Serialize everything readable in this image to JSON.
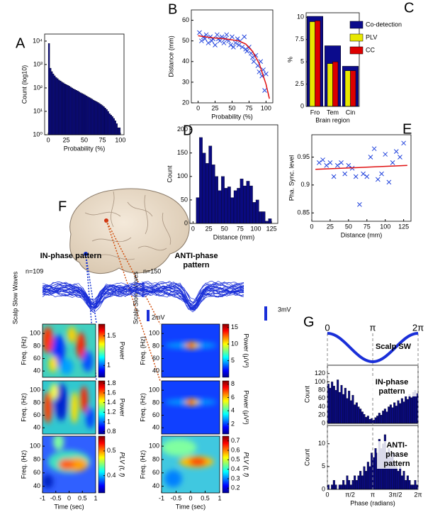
{
  "chart_data": [
    {
      "type": "histogram",
      "label": "A",
      "ylabel": "Count (log10)",
      "xlabel": "Probability (%)",
      "color": "#0a0a80",
      "log_y": true,
      "bins": [
        0,
        2,
        4,
        6,
        8,
        10,
        12,
        14,
        16,
        18,
        20,
        22,
        24,
        26,
        28,
        30,
        32,
        34,
        36,
        38,
        40,
        42,
        44,
        46,
        48,
        50,
        52,
        54,
        56,
        58,
        60,
        62,
        64,
        66,
        68,
        70,
        72,
        74,
        76,
        78,
        80,
        82,
        84,
        86,
        88,
        90,
        92,
        94,
        96,
        98,
        100
      ],
      "values": [
        8000,
        700,
        500,
        400,
        330,
        280,
        250,
        220,
        200,
        180,
        165,
        150,
        140,
        130,
        120,
        110,
        100,
        92,
        85,
        80,
        74,
        68,
        62,
        58,
        54,
        50,
        46,
        42,
        39,
        36,
        33,
        30,
        28,
        26,
        24,
        22,
        20,
        18,
        16,
        14,
        12,
        10,
        8,
        7,
        6,
        5,
        4,
        3,
        2,
        2
      ],
      "xlim": [
        -5,
        105
      ],
      "xticks": [
        0,
        25,
        50,
        75,
        100
      ],
      "ylim": [
        1,
        20000
      ],
      "yticks": [
        {
          "value": 1,
          "label": "10⁰"
        },
        {
          "value": 10,
          "label": "10¹"
        },
        {
          "value": 100,
          "label": "10²"
        },
        {
          "value": 1000,
          "label": "10³"
        },
        {
          "value": 10000,
          "label": "10⁴"
        }
      ]
    },
    {
      "type": "scatter",
      "label": "B",
      "ylabel": "Distance (mm)",
      "xlabel": "Probability (%)",
      "xlim": [
        -10,
        110
      ],
      "xticks": [
        0,
        25,
        50,
        75,
        100
      ],
      "ylim": [
        20,
        65
      ],
      "yticks": [
        20,
        30,
        40,
        50,
        60
      ],
      "series": [
        {
          "color": "#2244dd",
          "marker": "x",
          "x": [
            2,
            5,
            8,
            10,
            12,
            15,
            18,
            20,
            22,
            25,
            28,
            30,
            32,
            35,
            38,
            40,
            42,
            45,
            48,
            50,
            52,
            55,
            58,
            60,
            62,
            65,
            68,
            70,
            72,
            75,
            78,
            80,
            82,
            85,
            88,
            90,
            92,
            94,
            96,
            98,
            100
          ],
          "values": [
            54,
            50,
            52,
            51,
            53,
            49,
            52,
            50,
            51,
            48,
            53,
            51,
            50,
            52,
            49,
            51,
            53,
            50,
            48,
            52,
            47,
            49,
            51,
            48,
            50,
            47,
            52,
            46,
            45,
            47,
            44,
            42,
            40,
            43,
            38,
            35,
            40,
            33,
            36,
            26,
            34
          ]
        },
        {
          "color": "#e01010",
          "line": true,
          "x": [
            0,
            20,
            40,
            60,
            70,
            80,
            90,
            95,
            100,
            105
          ],
          "values": [
            52.5,
            51.5,
            51,
            50,
            48.5,
            45,
            39,
            34,
            29,
            22
          ]
        }
      ]
    },
    {
      "type": "bar",
      "label": "C",
      "ylabel": "%",
      "xlabel": "Brain region",
      "categories": [
        "Fro",
        "Tem",
        "Cin"
      ],
      "ylim": [
        0,
        10.5
      ],
      "yticks": [
        0,
        2.5,
        5,
        7.5,
        10
      ],
      "legend": "upper right",
      "series": [
        {
          "name": "Co-detection",
          "color": "#0b0b8c",
          "values": [
            10.1,
            6.8,
            4.5
          ]
        },
        {
          "name": "PLV",
          "color": "#e8e800",
          "values": [
            9.5,
            4.8,
            4.0
          ]
        },
        {
          "name": "CC",
          "color": "#dd0000",
          "values": [
            9.6,
            5.0,
            4.0
          ]
        }
      ]
    },
    {
      "type": "histogram",
      "label": "D",
      "ylabel": "Count",
      "xlabel": "Distance (mm)",
      "color": "#0a0a80",
      "bins": [
        5,
        10,
        15,
        20,
        25,
        30,
        35,
        40,
        45,
        50,
        55,
        60,
        65,
        70,
        75,
        80,
        85,
        90,
        95,
        100,
        105,
        110,
        115,
        120,
        125
      ],
      "values": [
        55,
        183,
        150,
        128,
        165,
        125,
        100,
        70,
        100,
        75,
        78,
        55,
        70,
        75,
        95,
        80,
        90,
        80,
        45,
        50,
        25,
        25,
        5,
        10
      ],
      "xlim": [
        -5,
        135
      ],
      "xticks": [
        0,
        25,
        50,
        75,
        100,
        125
      ],
      "ylim": [
        0,
        210
      ],
      "yticks": [
        0,
        50,
        100,
        150,
        200
      ]
    },
    {
      "type": "scatter",
      "label": "E",
      "ylabel": "Pha. Sync. level",
      "xlabel": "Distance (mm)",
      "xlim": [
        0,
        135
      ],
      "xticks": [
        0,
        25,
        50,
        75,
        100,
        125
      ],
      "ylim": [
        0.835,
        0.99
      ],
      "yticks": [
        0.85,
        0.9,
        0.95
      ],
      "series": [
        {
          "color": "#2244dd",
          "marker": "x",
          "x": [
            10,
            15,
            20,
            25,
            30,
            35,
            40,
            45,
            50,
            55,
            60,
            65,
            70,
            75,
            80,
            85,
            90,
            95,
            100,
            105,
            110,
            115,
            120,
            125
          ],
          "values": [
            0.94,
            0.945,
            0.935,
            0.94,
            0.915,
            0.935,
            0.94,
            0.92,
            0.935,
            0.93,
            0.915,
            0.865,
            0.92,
            0.915,
            0.95,
            0.965,
            0.91,
            0.92,
            0.955,
            0.905,
            0.94,
            0.96,
            0.95,
            0.975
          ]
        },
        {
          "color": "#e01010",
          "line": true,
          "x": [
            5,
            130
          ],
          "values": [
            0.928,
            0.935
          ]
        }
      ]
    },
    {
      "type": "heatmap",
      "ylabel": "Freq. (Hz)",
      "ylim": [
        30,
        115
      ],
      "yticks": [
        40,
        60,
        80,
        100
      ],
      "xlim": [
        -1,
        1
      ],
      "clabel": "Power",
      "clim": [
        0.8,
        1.7
      ],
      "cticks": [
        1,
        1.5
      ]
    },
    {
      "type": "heatmap",
      "ylabel": "Freq. (Hz)",
      "ylim": [
        30,
        115
      ],
      "yticks": [
        40,
        60,
        80,
        100
      ],
      "xlim": [
        -1,
        1
      ],
      "clabel": "Power",
      "clim": [
        0.75,
        1.85
      ],
      "cticks": [
        0.8,
        1,
        1.2,
        1.4,
        1.6,
        1.8
      ]
    },
    {
      "type": "heatmap",
      "ylabel": "Freq. (Hz)",
      "xlabel": "Time (sec)",
      "ylim": [
        30,
        115
      ],
      "yticks": [
        40,
        60,
        80,
        100
      ],
      "xlim": [
        -1,
        1
      ],
      "xticks": [
        -1,
        -0.5,
        0,
        0.5,
        1
      ],
      "clabel": "PLV (t, f)",
      "clim": [
        0.33,
        0.56
      ],
      "cticks": [
        0.4,
        0.5
      ]
    },
    {
      "type": "heatmap",
      "ylabel": "Freq. (Hz)",
      "ylim": [
        30,
        115
      ],
      "yticks": [
        40,
        60,
        80,
        100
      ],
      "xlim": [
        -1,
        1
      ],
      "clabel": "Power (μV²)",
      "clim": [
        0,
        16
      ],
      "cticks": [
        5,
        10,
        15
      ]
    },
    {
      "type": "heatmap",
      "ylabel": "Freq. (Hz)",
      "ylim": [
        30,
        115
      ],
      "yticks": [
        40,
        60,
        80,
        100
      ],
      "xlim": [
        -1,
        1
      ],
      "clabel": "Power (μV²)",
      "clim": [
        0.5,
        8.5
      ],
      "cticks": [
        2,
        4,
        6,
        8
      ]
    },
    {
      "type": "heatmap",
      "ylabel": "Freq. (Hz)",
      "xlabel": "Time (sec)",
      "ylim": [
        30,
        115
      ],
      "yticks": [
        40,
        60,
        80,
        100
      ],
      "xlim": [
        -1,
        1
      ],
      "xticks": [
        -1,
        -0.5,
        0,
        0.5,
        1
      ],
      "clabel": "PLV (t, f)",
      "clim": [
        0.15,
        0.75
      ],
      "cticks": [
        0.2,
        0.3,
        0.4,
        0.5,
        0.6,
        0.7
      ]
    },
    {
      "type": "histogram",
      "annotation": "IN-phase pattern",
      "ylabel": "Count",
      "color": "#0a0a80",
      "bins": [
        0,
        0.131,
        0.262,
        0.393,
        0.524,
        0.654,
        0.785,
        0.916,
        1.047,
        1.178,
        1.309,
        1.44,
        1.571,
        1.702,
        1.833,
        1.963,
        2.094,
        2.225,
        2.356,
        2.487,
        2.618,
        2.749,
        2.88,
        3.011,
        3.142,
        3.272,
        3.403,
        3.534,
        3.665,
        3.796,
        3.927,
        4.058,
        4.189,
        4.32,
        4.451,
        4.581,
        4.712,
        4.843,
        4.974,
        5.105,
        5.236,
        5.367,
        5.498,
        5.629,
        5.76,
        5.89,
        6.021,
        6.152,
        6.283
      ],
      "values": [
        95,
        85,
        100,
        90,
        80,
        105,
        75,
        92,
        70,
        85,
        60,
        78,
        55,
        68,
        45,
        50,
        40,
        35,
        28,
        22,
        15,
        18,
        10,
        12,
        8,
        14,
        18,
        25,
        20,
        30,
        35,
        28,
        40,
        45,
        38,
        50,
        42,
        55,
        48,
        60,
        52,
        65,
        58,
        70,
        62,
        75,
        80,
        72
      ],
      "xlim": [
        0,
        6.283
      ],
      "ylim": [
        0,
        140
      ],
      "yticks": [
        0,
        20,
        40,
        60,
        80,
        100,
        120
      ]
    },
    {
      "type": "histogram",
      "annotation": "ANTI-phase pattern",
      "ylabel": "Count",
      "xlabel": "Phase (radians)",
      "color": "#0a0a80",
      "bins": [
        0,
        0.131,
        0.262,
        0.393,
        0.524,
        0.654,
        0.785,
        0.916,
        1.047,
        1.178,
        1.309,
        1.44,
        1.571,
        1.702,
        1.833,
        1.963,
        2.094,
        2.225,
        2.356,
        2.487,
        2.618,
        2.749,
        2.88,
        3.011,
        3.142,
        3.272,
        3.403,
        3.534,
        3.665,
        3.796,
        3.927,
        4.058,
        4.189,
        4.32,
        4.451,
        4.581,
        4.712,
        4.843,
        4.974,
        5.105,
        5.236,
        5.367,
        5.498,
        5.629,
        5.76,
        5.89,
        6.021,
        6.152,
        6.283
      ],
      "values": [
        1,
        0,
        1,
        2,
        1,
        0,
        1,
        1,
        2,
        1,
        3,
        2,
        1,
        2,
        3,
        2,
        3,
        4,
        3,
        5,
        4,
        6,
        5,
        8,
        7,
        9,
        8,
        11,
        9,
        10,
        12,
        8,
        9,
        7,
        8,
        6,
        5,
        4,
        5,
        3,
        4,
        2,
        3,
        2,
        1,
        1,
        2,
        1
      ],
      "xlim": [
        0,
        6.283
      ],
      "xticks": [
        0,
        {
          "value": 1.571,
          "label": "π/2"
        },
        {
          "value": 3.142,
          "label": "π"
        },
        {
          "value": 4.712,
          "label": "3π/2"
        },
        {
          "value": 6.283,
          "label": "2π"
        }
      ],
      "ylim": [
        0,
        14
      ],
      "yticks": [
        0,
        5,
        10
      ]
    }
  ],
  "panel_f": {
    "label": "F",
    "in_title": "IN-phase pattern",
    "anti_title": "ANTI-phase pattern",
    "in_n": "n=109",
    "anti_n": "n=150",
    "wave_label": "Scalp Slow Waves",
    "in_scale": "2mV",
    "anti_scale": "3mV"
  },
  "panel_g": {
    "label": "G",
    "curve_label": "Scalp SW",
    "phase_labels": [
      "0",
      "π",
      "2π"
    ]
  }
}
